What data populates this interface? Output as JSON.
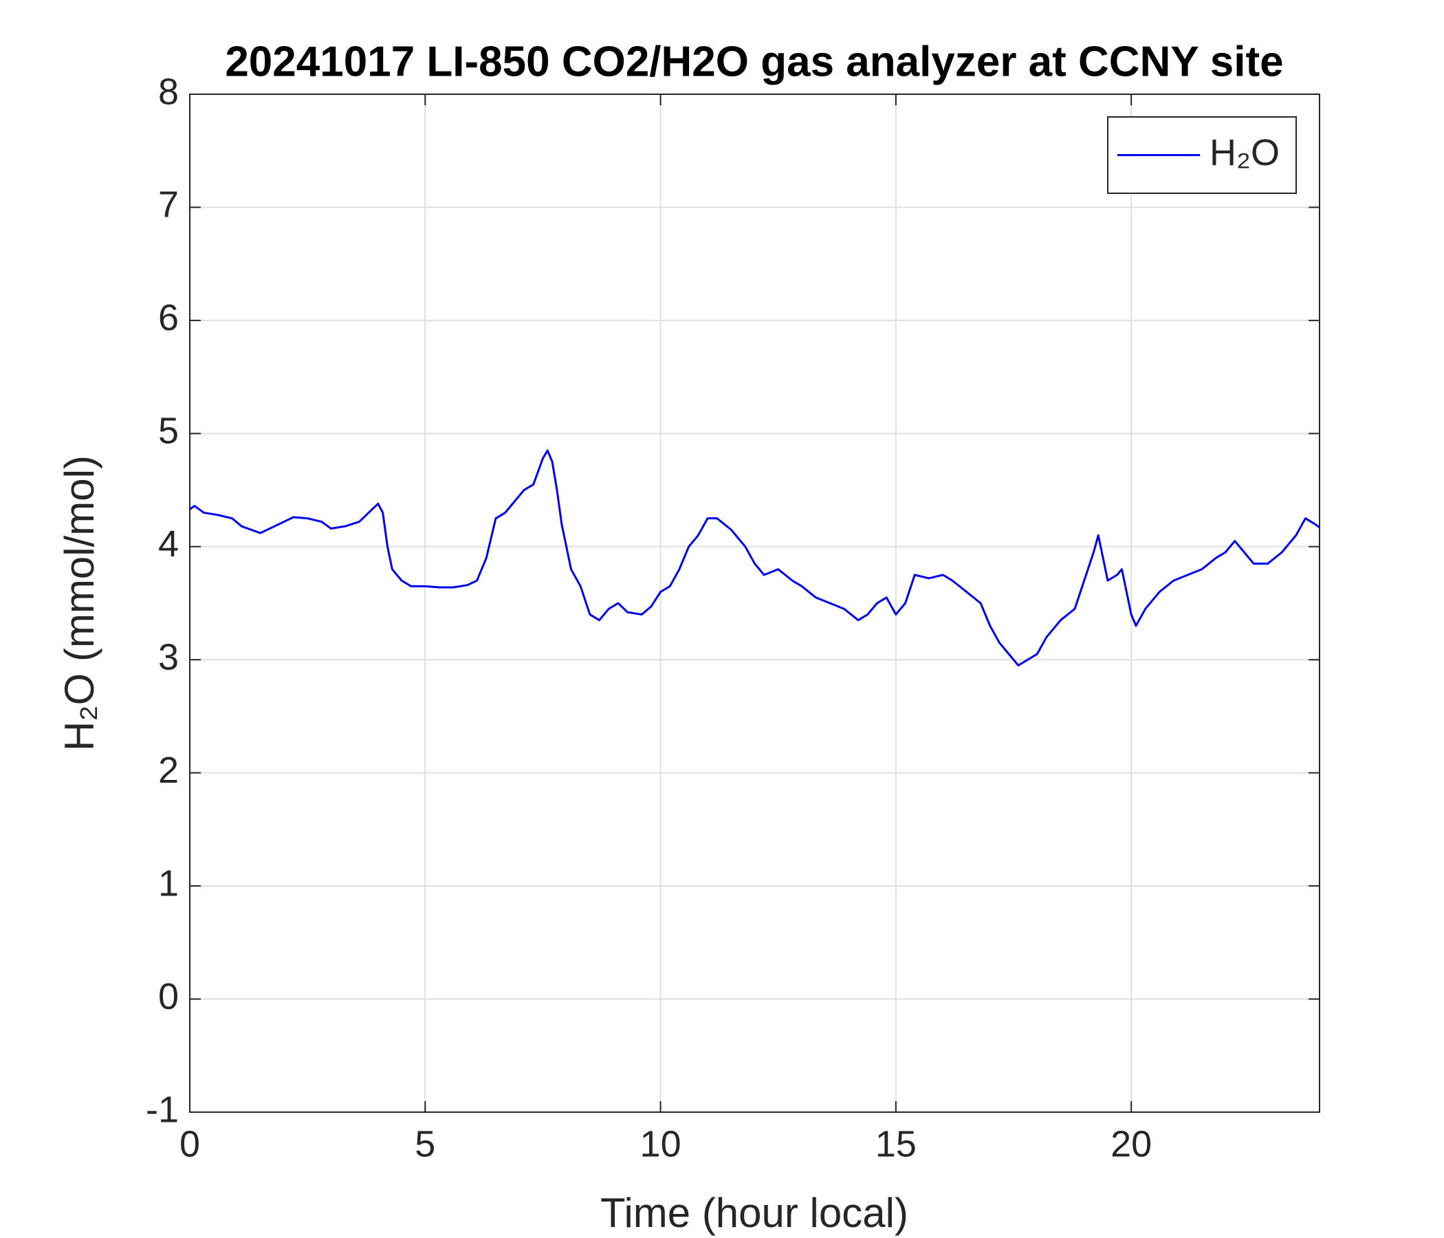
{
  "chart_data": {
    "type": "line",
    "title": "20241017 LI-850 CO2/H2O gas analyzer at CCNY site",
    "x_label": "Time (hour local)",
    "y_label": "H₂O (mmol/mol)",
    "x": [
      0,
      0.1,
      0.3,
      0.6,
      0.9,
      1.1,
      1.3,
      1.5,
      1.8,
      2.0,
      2.2,
      2.5,
      2.8,
      3.0,
      3.3,
      3.6,
      3.8,
      4.0,
      4.1,
      4.2,
      4.3,
      4.5,
      4.7,
      5.0,
      5.3,
      5.6,
      5.9,
      6.1,
      6.3,
      6.5,
      6.7,
      6.9,
      7.1,
      7.3,
      7.5,
      7.6,
      7.7,
      7.8,
      7.9,
      8.0,
      8.1,
      8.3,
      8.5,
      8.7,
      8.9,
      9.1,
      9.3,
      9.6,
      9.8,
      10.0,
      10.2,
      10.4,
      10.6,
      10.8,
      11.0,
      11.2,
      11.5,
      11.8,
      12.0,
      12.2,
      12.5,
      12.8,
      13.0,
      13.3,
      13.6,
      13.9,
      14.2,
      14.4,
      14.6,
      14.8,
      15.0,
      15.2,
      15.4,
      15.7,
      16.0,
      16.2,
      16.5,
      16.8,
      17.0,
      17.2,
      17.4,
      17.6,
      17.8,
      18.0,
      18.2,
      18.5,
      18.8,
      19.0,
      19.2,
      19.3,
      19.4,
      19.5,
      19.7,
      19.8,
      20.0,
      20.1,
      20.3,
      20.6,
      20.9,
      21.2,
      21.5,
      21.8,
      22.0,
      22.2,
      22.4,
      22.6,
      22.9,
      23.2,
      23.5,
      23.7,
      23.9,
      24.0
    ],
    "series": [
      {
        "name": "H₂O",
        "color": "#0000ee",
        "values": [
          4.33,
          4.36,
          4.3,
          4.28,
          4.25,
          4.18,
          4.15,
          4.12,
          4.18,
          4.22,
          4.26,
          4.25,
          4.22,
          4.16,
          4.18,
          4.22,
          4.3,
          4.38,
          4.3,
          4.0,
          3.8,
          3.7,
          3.65,
          3.65,
          3.64,
          3.64,
          3.66,
          3.7,
          3.9,
          4.25,
          4.3,
          4.4,
          4.5,
          4.55,
          4.78,
          4.85,
          4.75,
          4.5,
          4.2,
          4.0,
          3.8,
          3.65,
          3.4,
          3.35,
          3.45,
          3.5,
          3.42,
          3.4,
          3.47,
          3.6,
          3.65,
          3.8,
          4.0,
          4.1,
          4.25,
          4.25,
          4.15,
          4.0,
          3.85,
          3.75,
          3.8,
          3.7,
          3.65,
          3.55,
          3.5,
          3.45,
          3.35,
          3.4,
          3.5,
          3.55,
          3.4,
          3.5,
          3.75,
          3.72,
          3.75,
          3.7,
          3.6,
          3.5,
          3.3,
          3.15,
          3.05,
          2.95,
          3.0,
          3.05,
          3.2,
          3.35,
          3.45,
          3.7,
          3.95,
          4.1,
          3.9,
          3.7,
          3.75,
          3.8,
          3.4,
          3.3,
          3.45,
          3.6,
          3.7,
          3.75,
          3.8,
          3.9,
          3.95,
          4.05,
          3.95,
          3.85,
          3.85,
          3.95,
          4.1,
          4.25,
          4.2,
          4.17
        ]
      }
    ],
    "xlim": [
      0,
      24
    ],
    "xticks": [
      0,
      5,
      10,
      15,
      20
    ],
    "ylim": [
      -1,
      8
    ],
    "yticks": [
      -1,
      0,
      1,
      2,
      3,
      4,
      5,
      6,
      7,
      8
    ],
    "grid": true,
    "legend": "northeast"
  }
}
